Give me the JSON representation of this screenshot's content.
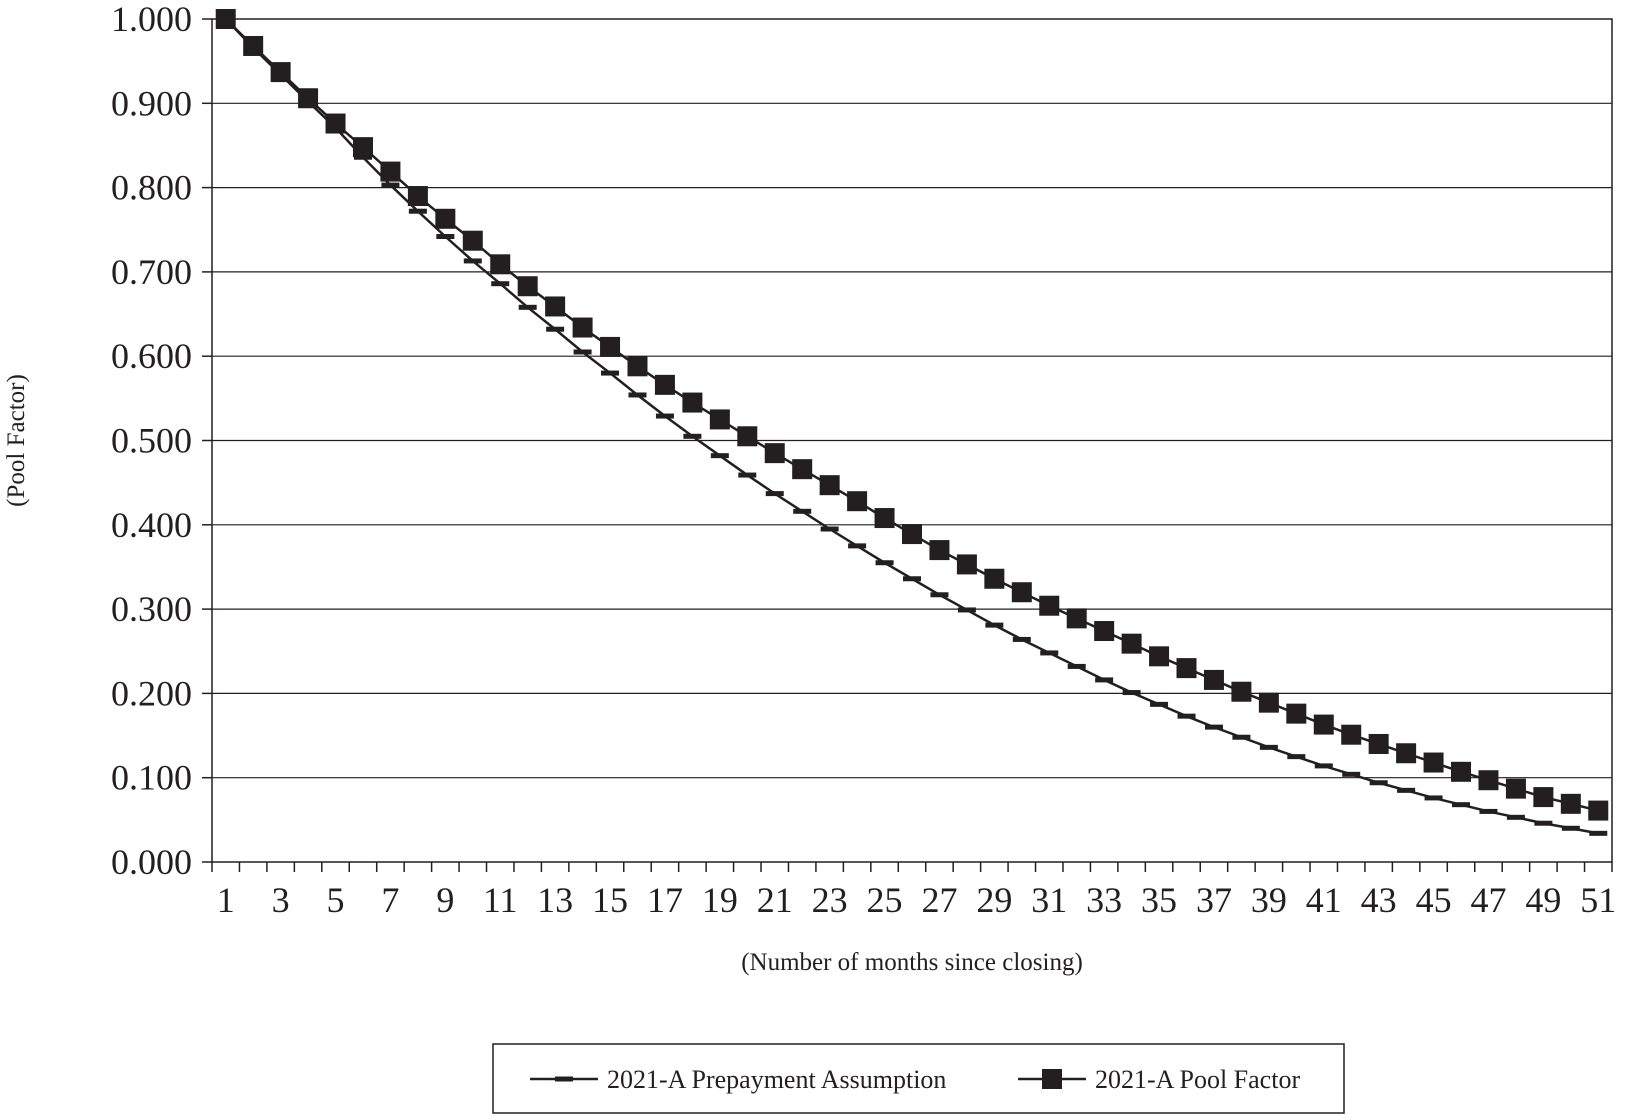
{
  "chart_data": {
    "type": "line",
    "title": "",
    "xlabel": "(Number of months since closing)",
    "ylabel": "(Pool Factor)",
    "x": [
      1,
      2,
      3,
      4,
      5,
      6,
      7,
      8,
      9,
      10,
      11,
      12,
      13,
      14,
      15,
      16,
      17,
      18,
      19,
      20,
      21,
      22,
      23,
      24,
      25,
      26,
      27,
      28,
      29,
      30,
      31,
      32,
      33,
      34,
      35,
      36,
      37,
      38,
      39,
      40,
      41,
      42,
      43,
      44,
      45,
      46,
      47,
      48,
      49,
      50,
      51
    ],
    "x_tick_labels": [
      "1",
      "3",
      "5",
      "7",
      "9",
      "11",
      "13",
      "15",
      "17",
      "19",
      "21",
      "23",
      "25",
      "27",
      "29",
      "31",
      "33",
      "35",
      "37",
      "39",
      "41",
      "43",
      "45",
      "47",
      "49",
      "51"
    ],
    "y_tick_labels": [
      "0.000",
      "0.100",
      "0.200",
      "0.300",
      "0.400",
      "0.500",
      "0.600",
      "0.700",
      "0.800",
      "0.900",
      "1.000"
    ],
    "ylim": [
      0,
      1
    ],
    "grid": "horizontal",
    "legend_position": "bottom",
    "series": [
      {
        "name": "2021-A Prepayment Assumption",
        "marker": "dash",
        "color": "#231f20",
        "values": [
          1.0,
          0.966,
          0.934,
          0.902,
          0.871,
          0.836,
          0.803,
          0.772,
          0.742,
          0.713,
          0.686,
          0.658,
          0.632,
          0.605,
          0.58,
          0.554,
          0.529,
          0.505,
          0.482,
          0.459,
          0.437,
          0.416,
          0.395,
          0.375,
          0.355,
          0.336,
          0.317,
          0.299,
          0.281,
          0.264,
          0.248,
          0.232,
          0.216,
          0.201,
          0.187,
          0.173,
          0.16,
          0.148,
          0.136,
          0.125,
          0.114,
          0.104,
          0.094,
          0.085,
          0.076,
          0.068,
          0.06,
          0.053,
          0.046,
          0.04,
          0.034
        ]
      },
      {
        "name": "2021-A Pool Factor",
        "marker": "square",
        "color": "#231f20",
        "values": [
          1.0,
          0.968,
          0.937,
          0.906,
          0.876,
          0.848,
          0.819,
          0.79,
          0.763,
          0.737,
          0.709,
          0.683,
          0.659,
          0.634,
          0.611,
          0.588,
          0.566,
          0.545,
          0.525,
          0.505,
          0.485,
          0.466,
          0.447,
          0.428,
          0.408,
          0.389,
          0.37,
          0.353,
          0.336,
          0.32,
          0.304,
          0.289,
          0.274,
          0.259,
          0.244,
          0.23,
          0.216,
          0.202,
          0.189,
          0.176,
          0.163,
          0.151,
          0.14,
          0.129,
          0.118,
          0.107,
          0.097,
          0.087,
          0.077,
          0.069,
          0.061
        ]
      }
    ]
  }
}
